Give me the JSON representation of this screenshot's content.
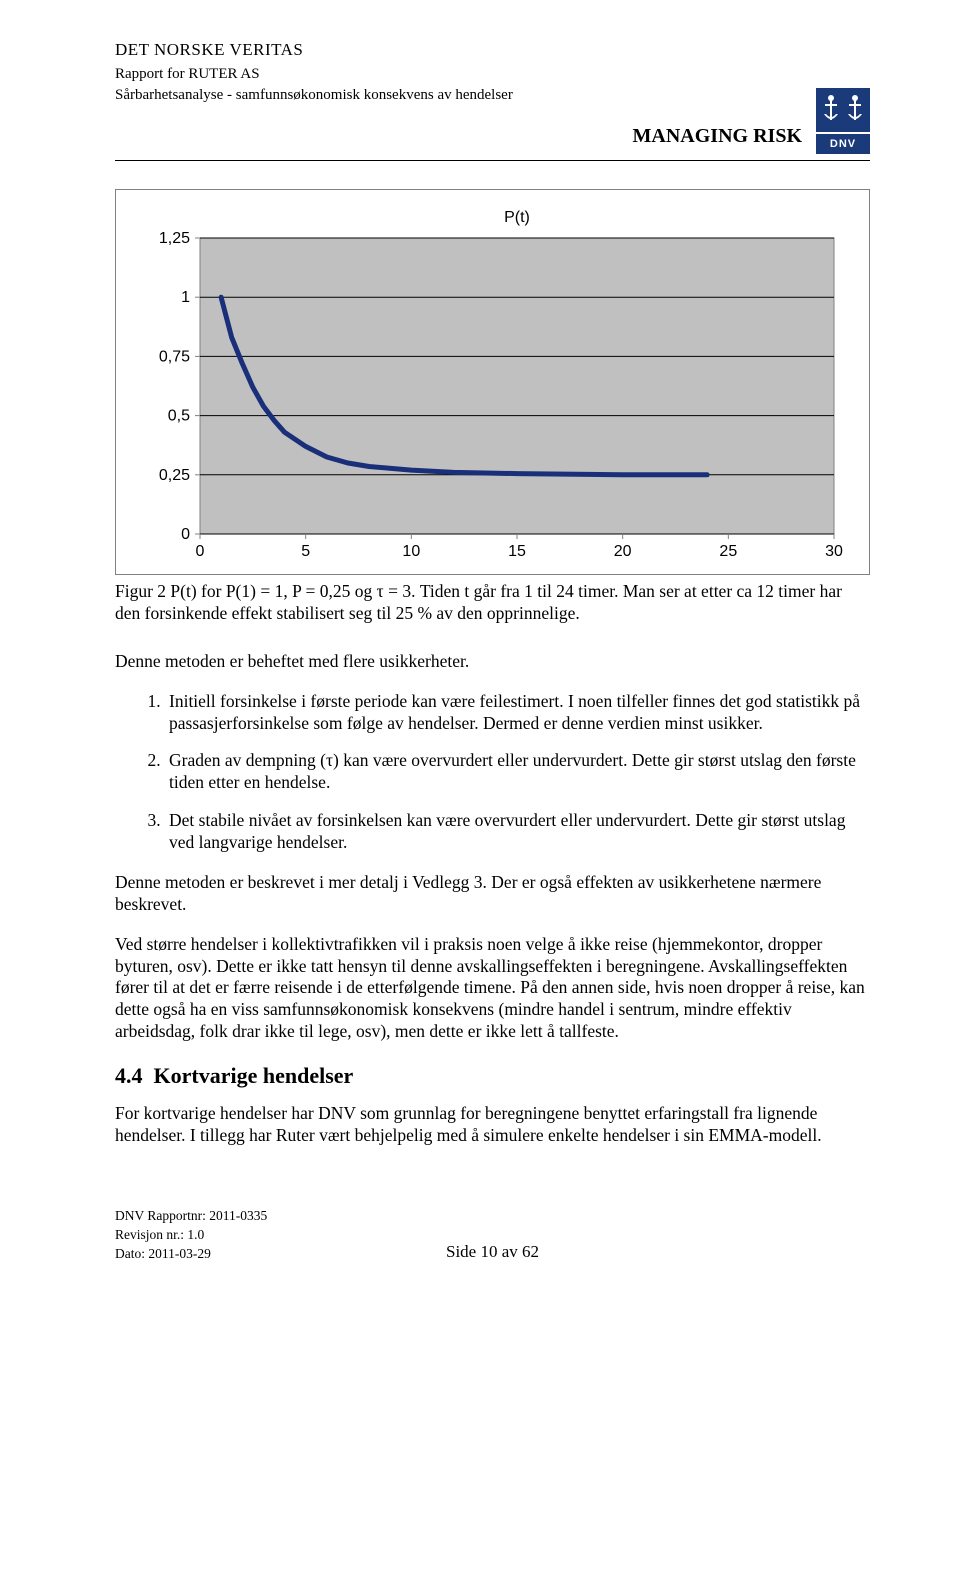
{
  "header": {
    "org_name": "DET NORSKE VERITAS",
    "report_for": "Rapport for RUTER AS",
    "subtitle": "Sårbarhetsanalyse - samfunnsøkonomisk konsekvens av hendelser",
    "managing_risk": "MANAGING RISK",
    "logo_text": "DNV",
    "logo_bg": "#1a3a7a",
    "logo_fg": "#ffffff"
  },
  "chart": {
    "type": "line",
    "title": "P(t)",
    "title_fontsize": 16,
    "title_color": "#000000",
    "plot_bg": "#c0c0c0",
    "outer_bg": "#ffffff",
    "grid_color": "#000000",
    "axis_color": "#808080",
    "tick_fontsize": 16,
    "tick_font": "Arial, sans-serif",
    "line_color": "#1a2f7a",
    "line_width": 5,
    "xlim": [
      0,
      30
    ],
    "ylim": [
      0,
      1.25
    ],
    "xtick_step": 5,
    "ytick_step": 0.25,
    "xticks": [
      "0",
      "5",
      "10",
      "15",
      "20",
      "25",
      "30"
    ],
    "yticks": [
      "0",
      "0,25",
      "0,5",
      "0,75",
      "1",
      "1,25"
    ],
    "series": [
      {
        "x": 1,
        "y": 1.0
      },
      {
        "x": 1.5,
        "y": 0.83
      },
      {
        "x": 2,
        "y": 0.72
      },
      {
        "x": 2.5,
        "y": 0.62
      },
      {
        "x": 3,
        "y": 0.54
      },
      {
        "x": 3.5,
        "y": 0.48
      },
      {
        "x": 4,
        "y": 0.43
      },
      {
        "x": 5,
        "y": 0.37
      },
      {
        "x": 6,
        "y": 0.325
      },
      {
        "x": 7,
        "y": 0.3
      },
      {
        "x": 8,
        "y": 0.285
      },
      {
        "x": 10,
        "y": 0.27
      },
      {
        "x": 12,
        "y": 0.26
      },
      {
        "x": 15,
        "y": 0.255
      },
      {
        "x": 20,
        "y": 0.25
      },
      {
        "x": 24,
        "y": 0.25
      }
    ]
  },
  "figure_caption": "Figur 2 P(t) for P(1) = 1, P = 0,25 og τ = 3. Tiden t går fra 1 til 24 timer. Man ser at etter ca 12 timer har den forsinkende effekt stabilisert seg til 25 % av den opprinnelige.",
  "para1": "Denne metoden er beheftet med flere usikkerheter.",
  "list": [
    "Initiell forsinkelse i første periode kan være feilestimert. I noen tilfeller finnes det god statistikk på passasjerforsinkelse som følge av hendelser. Dermed er denne verdien minst usikker.",
    "Graden av dempning (τ) kan være overvurdert eller undervurdert. Dette gir størst utslag den første tiden etter en hendelse.",
    "Det stabile nivået av forsinkelsen kan være overvurdert eller undervurdert. Dette gir størst utslag ved langvarige hendelser."
  ],
  "para2": "Denne metoden er beskrevet i mer detalj i Vedlegg 3. Der er også effekten av usikkerhetene nærmere beskrevet.",
  "para3": "Ved større hendelser i kollektivtrafikken vil i praksis noen velge å ikke reise (hjemmekontor, dropper byturen, osv). Dette er ikke tatt hensyn til denne avskallingseffekten i beregningene. Avskallingseffekten fører til at det er færre reisende i de etterfølgende timene. På den annen side, hvis noen dropper å reise, kan dette også ha en viss samfunnsøkonomisk konsekvens (mindre handel i sentrum, mindre effektiv arbeidsdag, folk drar ikke til lege, osv), men dette er ikke lett å tallfeste.",
  "section": {
    "number": "4.4",
    "title": "Kortvarige hendelser"
  },
  "para4": "For kortvarige hendelser har DNV som grunnlag for beregningene benyttet erfaringstall fra lignende hendelser. I tillegg har Ruter vært behjelpelig med å simulere enkelte hendelser i sin EMMA-modell.",
  "footer": {
    "line1": "DNV Rapportnr: 2011-0335",
    "line2": "Revisjon nr.: 1.0",
    "line3": "Dato: 2011-03-29",
    "page": "Side 10 av 62"
  }
}
